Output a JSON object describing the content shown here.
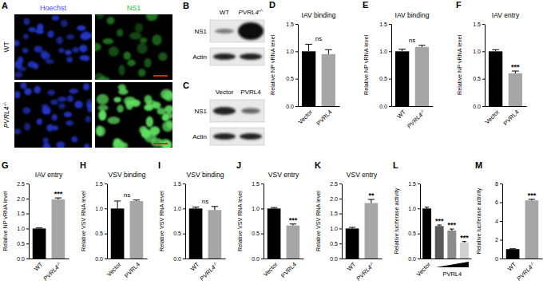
{
  "panels": [
    {
      "label": "A",
      "columns": [
        "Hoechst",
        "NS1"
      ],
      "rows": [
        "WT",
        "PVRL4-/-"
      ]
    },
    {
      "label": "B",
      "lanes": [
        "WT",
        "PVRL4-/-"
      ],
      "bands": [
        "NS1",
        "Actin"
      ]
    },
    {
      "label": "C",
      "lanes": [
        "Vector",
        "PVRL4"
      ],
      "bands": [
        "NS1",
        "Actin"
      ]
    }
  ],
  "chart_data": [
    {
      "type": "bar",
      "label": "D",
      "title": "IAV binding",
      "ylabel": "Relative NP vRNA level",
      "categories": [
        "Vector",
        "PVRL4"
      ],
      "values": [
        1.0,
        0.95
      ],
      "errors": [
        0.13,
        0.08
      ],
      "colors": [
        "#000000",
        "#a6a6a6"
      ],
      "ylim": [
        0,
        1.5
      ],
      "yticks": [
        {
          "value": 0,
          "label": "0.0"
        },
        0.5,
        {
          "value": 1,
          "label": "1.0"
        },
        1.5
      ],
      "annotation": "ns"
    },
    {
      "type": "bar",
      "label": "E",
      "title": "IAV binding",
      "ylabel": "Relative NP vRNA level",
      "categories": [
        "WT",
        "PVRL4-/-"
      ],
      "values": [
        1.0,
        1.08
      ],
      "errors": [
        0.04,
        0.03
      ],
      "colors": [
        "#000000",
        "#a6a6a6"
      ],
      "ylim": [
        0,
        1.5
      ],
      "yticks": [
        {
          "value": 0,
          "label": "0.0"
        },
        0.5,
        {
          "value": 1,
          "label": "1.0"
        },
        1.5
      ],
      "annotation": "ns"
    },
    {
      "type": "bar",
      "label": "F",
      "title": "IAV entry",
      "ylabel": "Relative NP vRNA level",
      "categories": [
        "Vector",
        "PVRL4"
      ],
      "values": [
        1.0,
        0.6
      ],
      "errors": [
        0.03,
        0.04
      ],
      "colors": [
        "#000000",
        "#a6a6a6"
      ],
      "ylim": [
        0,
        1.5
      ],
      "yticks": [
        {
          "value": 0,
          "label": "0.0"
        },
        0.5,
        {
          "value": 1,
          "label": "1.0"
        },
        1.5
      ],
      "significance": [
        null,
        "***"
      ]
    },
    {
      "type": "bar",
      "label": "G",
      "title": "IAV entry",
      "ylabel": "Relative NP vRNA level",
      "categories": [
        "WT",
        "PVRL4-/-"
      ],
      "values": [
        1.0,
        1.97
      ],
      "errors": [
        0.02,
        0.05
      ],
      "colors": [
        "#000000",
        "#a6a6a6"
      ],
      "ylim": [
        0,
        2.5
      ],
      "yticks": [
        {
          "value": 0,
          "label": "0.0"
        },
        0.5,
        {
          "value": 1,
          "label": "1.0"
        },
        1.5,
        {
          "value": 2,
          "label": "2.0"
        },
        2.5
      ],
      "significance": [
        null,
        "***"
      ]
    },
    {
      "type": "bar",
      "label": "H",
      "title": "VSV binding",
      "ylabel": "Relative VSV RNA level",
      "categories": [
        "Vector",
        "PVRL4"
      ],
      "values": [
        1.0,
        1.15
      ],
      "errors": [
        0.15,
        0.02
      ],
      "colors": [
        "#000000",
        "#a6a6a6"
      ],
      "ylim": [
        0,
        1.5
      ],
      "yticks": [
        {
          "value": 0,
          "label": "0.0"
        },
        0.5,
        {
          "value": 1,
          "label": "1.0"
        },
        1.5
      ],
      "annotation": "ns"
    },
    {
      "type": "bar",
      "label": "I",
      "title": "VSV binding",
      "ylabel": "Relative VSV RNA level",
      "categories": [
        "WT",
        "PVRL4-/-"
      ],
      "values": [
        1.0,
        0.97
      ],
      "errors": [
        0.03,
        0.07
      ],
      "colors": [
        "#000000",
        "#a6a6a6"
      ],
      "ylim": [
        0,
        1.5
      ],
      "yticks": [
        {
          "value": 0,
          "label": "0.0"
        },
        0.5,
        {
          "value": 1,
          "label": "1.0"
        },
        1.5
      ],
      "annotation": "ns"
    },
    {
      "type": "bar",
      "label": "J",
      "title": "VSV entry",
      "ylabel": "Relative VSV RNA level",
      "categories": [
        "Vector",
        "PVRL4"
      ],
      "values": [
        1.0,
        0.66
      ],
      "errors": [
        0.02,
        0.03
      ],
      "colors": [
        "#000000",
        "#a6a6a6"
      ],
      "ylim": [
        0,
        1.5
      ],
      "yticks": [
        {
          "value": 0,
          "label": "0.0"
        },
        0.5,
        {
          "value": 1,
          "label": "1.0"
        },
        1.5
      ],
      "significance": [
        null,
        "***"
      ]
    },
    {
      "type": "bar",
      "label": "K",
      "title": "VSV entry",
      "ylabel": "Relative VSV RNA level",
      "categories": [
        "WT",
        "PVRL4-/-"
      ],
      "values": [
        1.0,
        1.85
      ],
      "errors": [
        0.04,
        0.12
      ],
      "colors": [
        "#000000",
        "#a6a6a6"
      ],
      "ylim": [
        0,
        2.5
      ],
      "yticks": [
        {
          "value": 0,
          "label": "0.0"
        },
        0.5,
        {
          "value": 1,
          "label": "1.0"
        },
        1.5,
        {
          "value": 2,
          "label": "2.0"
        },
        2.5
      ],
      "significance": [
        null,
        "**"
      ]
    },
    {
      "type": "bar",
      "label": "L",
      "ylabel": "Relative luciferase activity",
      "categories": [
        "Vector",
        null,
        null,
        null
      ],
      "group_label": "PVRL4",
      "values": [
        1.0,
        0.65,
        0.56,
        0.32
      ],
      "errors": [
        0.03,
        0.02,
        0.03,
        0.02
      ],
      "colors": [
        "#000000",
        "#595959",
        "#8c8c8c",
        "#d0d0d0"
      ],
      "ylim": [
        0,
        1.5
      ],
      "yticks": [
        {
          "value": 0,
          "label": "0.0"
        },
        0.5,
        {
          "value": 1,
          "label": "1.0"
        },
        1.5
      ],
      "significance": [
        null,
        "***",
        "***",
        "***"
      ]
    },
    {
      "type": "bar",
      "label": "M",
      "ylabel": "Relative luciferase activity",
      "categories": [
        "WT",
        "PVRL4-/-"
      ],
      "values": [
        1.0,
        6.2
      ],
      "errors": [
        0.04,
        0.12
      ],
      "colors": [
        "#000000",
        "#a6a6a6"
      ],
      "ylim": [
        0,
        8
      ],
      "yticks": [
        0,
        2,
        4,
        6,
        8
      ],
      "significance": [
        null,
        "***"
      ]
    }
  ]
}
